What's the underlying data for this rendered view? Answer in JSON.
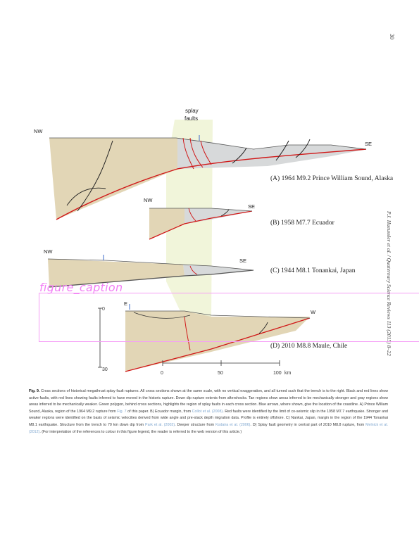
{
  "page_number": "30",
  "running_head": "P.J. Haeussler et al. / Quaternary Science Reviews 113 (2015) 8–22",
  "overlay": {
    "label": "figure_caption"
  },
  "figure": {
    "splay_label_line1": "splay",
    "splay_label_line2": "faults",
    "panels": [
      {
        "id": "A",
        "left_dir": "NW",
        "right_dir": "SE",
        "title": "(A) 1964 M9.2 Prince William Sound, Alaska"
      },
      {
        "id": "B",
        "left_dir": "NW",
        "right_dir": "SE",
        "title": "(B) 1958 M7.7 Ecuador"
      },
      {
        "id": "C",
        "left_dir": "NW",
        "right_dir": "SE",
        "title": "(C) 1944 M8.1 Tonankai, Japan"
      },
      {
        "id": "D",
        "left_dir": "E",
        "right_dir": "W",
        "title": "(D) 2010 M8.8 Maule, Chile"
      }
    ],
    "depth_axis": {
      "top": "0",
      "bottom": "30"
    },
    "distance_axis": {
      "ticks": [
        "0",
        "50",
        "100"
      ],
      "unit": "km"
    }
  },
  "caption": {
    "label": "Fig. 9.",
    "p1": " Cross sections of historical megathrust splay fault ruptures. All cross sections shown at the same scale, with no vertical exaggeration, and all turned such that the trench is to the right. Black and red lines show active faults, with red lines showing faults inferred to have moved in the historic rupture. Down dip rupture extents from aftershocks. Tan regions show areas inferred to be mechanically stronger and gray regions show areas inferred to be mechanically weaker. Green polygon, behind cross sections, highlights the region of splay faults in each cross section. Blue arrows, where shown, give the location of the coastline. A) Prince William Sound, Alaska, region of the 1964 M9.2 rupture from ",
    "r1": "Fig. 7",
    "p2": " of this paper. B) Ecuador margin, from ",
    "r2": "Collot et al. (2008)",
    "p3": ". Red faults were identified by the limit of co-seismic slip in the 1958 M7.7 earthquake. Stronger and weaker regions were identified on the basis of seismic velocities derived from wide angle and pre-stack depth migration data. Profile is entirely offshore. C) Nankai, Japan, margin in the region of the 1944 Tonankai M8.1 earthquake. Structure from the trench to 70 km down dip from ",
    "r3": "Park et al. (2002)",
    "p4": ". Deeper structure from ",
    "r4": "Kodaira et al. (2006)",
    "p5": ". D) Splay fault geometry in central part of 2010 M8.8 rupture, from ",
    "r5": "Melnick et al. (2012)",
    "p6": ". (For interpretation of the references to colour in this figure legend, the reader is referred to the web version of this article.)"
  }
}
